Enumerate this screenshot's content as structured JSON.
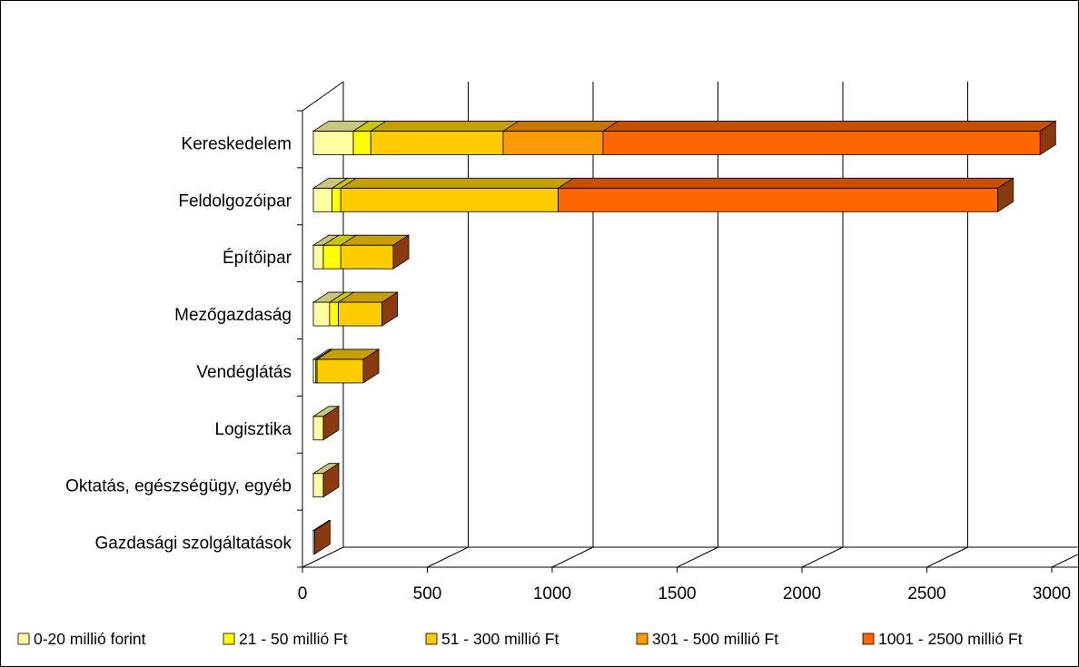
{
  "chart_data": {
    "type": "bar",
    "orientation": "horizontal",
    "stacked": true,
    "three_d": true,
    "categories": [
      "Kereskedelem",
      "Feldolgozóipar",
      "Építőipar",
      "Mezőgazdaság",
      "Vendéglátás",
      "Logisztika",
      "Oktatás, egészségügy, egyéb",
      "Gazdasági szolgáltatások"
    ],
    "series": [
      {
        "name": "0-20 millió forint",
        "color": "#FFFFA0",
        "values": [
          160,
          75,
          40,
          65,
          10,
          40,
          40,
          5
        ]
      },
      {
        "name": "21 - 50  millió Ft",
        "color": "#FFFF00",
        "values": [
          70,
          35,
          70,
          35,
          5,
          0,
          0,
          0
        ]
      },
      {
        "name": "51 - 300  millió Ft",
        "color": "#FFCC00",
        "values": [
          530,
          870,
          210,
          175,
          185,
          0,
          0,
          0
        ]
      },
      {
        "name": "301 - 500  millió Ft",
        "color": "#FF9900",
        "values": [
          400,
          0,
          0,
          0,
          0,
          0,
          0,
          0
        ]
      },
      {
        "name": "1001 - 2500  millió Ft",
        "color": "#FF6600",
        "values": [
          1750,
          1760,
          0,
          0,
          0,
          0,
          0,
          0
        ]
      }
    ],
    "x_ticks": [
      0,
      500,
      1000,
      1500,
      2000,
      2500,
      3000
    ],
    "xlim": [
      0,
      3000
    ],
    "grid": true,
    "legend": "bottom"
  }
}
